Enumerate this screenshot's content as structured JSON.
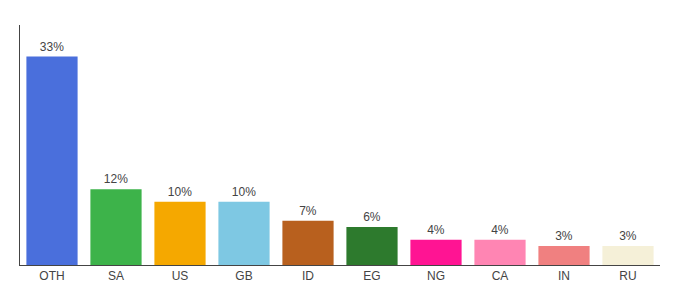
{
  "chart_data": {
    "type": "bar",
    "categories": [
      "OTH",
      "SA",
      "US",
      "GB",
      "ID",
      "EG",
      "NG",
      "CA",
      "IN",
      "RU"
    ],
    "values": [
      33,
      12,
      10,
      10,
      7,
      6,
      4,
      4,
      3,
      3
    ],
    "value_labels": [
      "33%",
      "12%",
      "10%",
      "10%",
      "7%",
      "6%",
      "4%",
      "4%",
      "3%",
      "3%"
    ],
    "colors": [
      "#4a6fdc",
      "#3db34a",
      "#f5a800",
      "#7ec8e3",
      "#b8601e",
      "#2d7a2d",
      "#ff1493",
      "#ff85b3",
      "#f08080",
      "#f5f0d8"
    ],
    "ylim": [
      0,
      38
    ],
    "data_labels": true,
    "tick_labels": "x",
    "grid": false
  }
}
